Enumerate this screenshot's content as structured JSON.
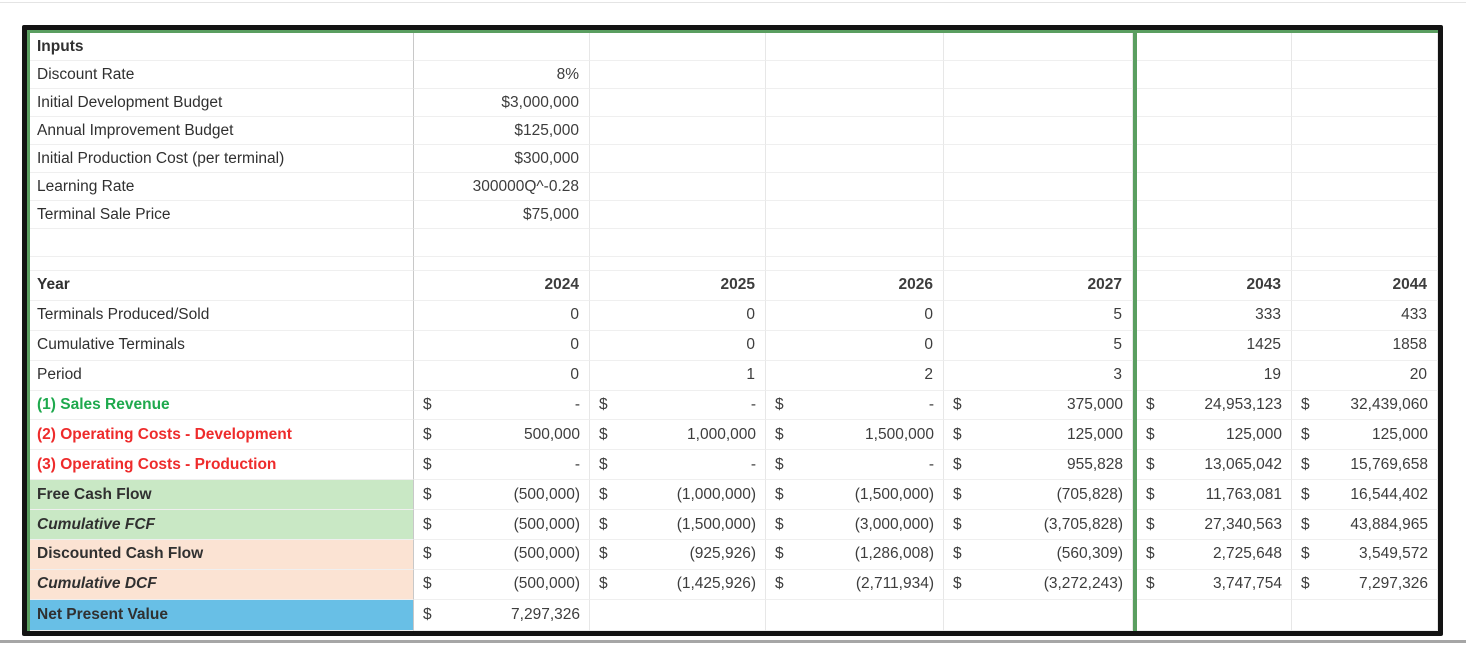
{
  "colors": {
    "frame_border": "#131313",
    "green_accent": "#5a9e60",
    "green_row_bg": "#c9e8c5",
    "peach_row_bg": "#fbe3d3",
    "blue_row_bg": "#68bfe6",
    "green_label_text": "#1ea94d",
    "red_label_text": "#ee2b2b"
  },
  "currency_symbol": "$",
  "inputs": {
    "title": "Inputs",
    "rows": [
      {
        "label": "Discount Rate",
        "value": "8%"
      },
      {
        "label": "Initial Development Budget",
        "value": "$3,000,000"
      },
      {
        "label": "Annual Improvement Budget",
        "value": "$125,000"
      },
      {
        "label": "Initial Production Cost (per terminal)",
        "value": "$300,000"
      },
      {
        "label": "Learning Rate",
        "value": "300000Q^-0.28"
      },
      {
        "label": "Terminal Sale Price",
        "value": "$75,000"
      }
    ]
  },
  "table": {
    "year_label": "Year",
    "years": [
      "2024",
      "2025",
      "2026",
      "2027",
      "2043",
      "2044"
    ],
    "count_rows": [
      {
        "label": "Terminals Produced/Sold",
        "values": [
          "0",
          "0",
          "0",
          "5",
          "333",
          "433"
        ]
      },
      {
        "label": "Cumulative Terminals",
        "values": [
          "0",
          "0",
          "0",
          "5",
          "1425",
          "1858"
        ]
      },
      {
        "label": "Period",
        "values": [
          "0",
          "1",
          "2",
          "3",
          "19",
          "20"
        ]
      }
    ],
    "money_rows": [
      {
        "label": "(1) Sales Revenue",
        "style": "green-text",
        "values": [
          "-",
          "-",
          "-",
          "375,000",
          "24,953,123",
          "32,439,060"
        ]
      },
      {
        "label": "(2) Operating Costs - Development",
        "style": "red-text",
        "values": [
          "500,000",
          "1,000,000",
          "1,500,000",
          "125,000",
          "125,000",
          "125,000"
        ]
      },
      {
        "label": "(3) Operating Costs - Production",
        "style": "red-text",
        "values": [
          "-",
          "-",
          "-",
          "955,828",
          "13,065,042",
          "15,769,658"
        ]
      },
      {
        "label": "Free Cash Flow",
        "style": "fcf",
        "values": [
          "(500,000)",
          "(1,000,000)",
          "(1,500,000)",
          "(705,828)",
          "11,763,081",
          "16,544,402"
        ]
      },
      {
        "label": "Cumulative FCF",
        "style": "fcf-i",
        "values": [
          "(500,000)",
          "(1,500,000)",
          "(3,000,000)",
          "(3,705,828)",
          "27,340,563",
          "43,884,965"
        ]
      },
      {
        "label": "Discounted Cash Flow",
        "style": "dcf",
        "values": [
          "(500,000)",
          "(925,926)",
          "(1,286,008)",
          "(560,309)",
          "2,725,648",
          "3,549,572"
        ]
      },
      {
        "label": "Cumulative DCF",
        "style": "dcf-i",
        "values": [
          "(500,000)",
          "(1,425,926)",
          "(2,711,934)",
          "(3,272,243)",
          "3,747,754",
          "7,297,326"
        ]
      },
      {
        "label": "Net Present Value",
        "style": "npv",
        "values": [
          "7,297,326",
          "",
          "",
          "",
          "",
          ""
        ]
      }
    ]
  }
}
